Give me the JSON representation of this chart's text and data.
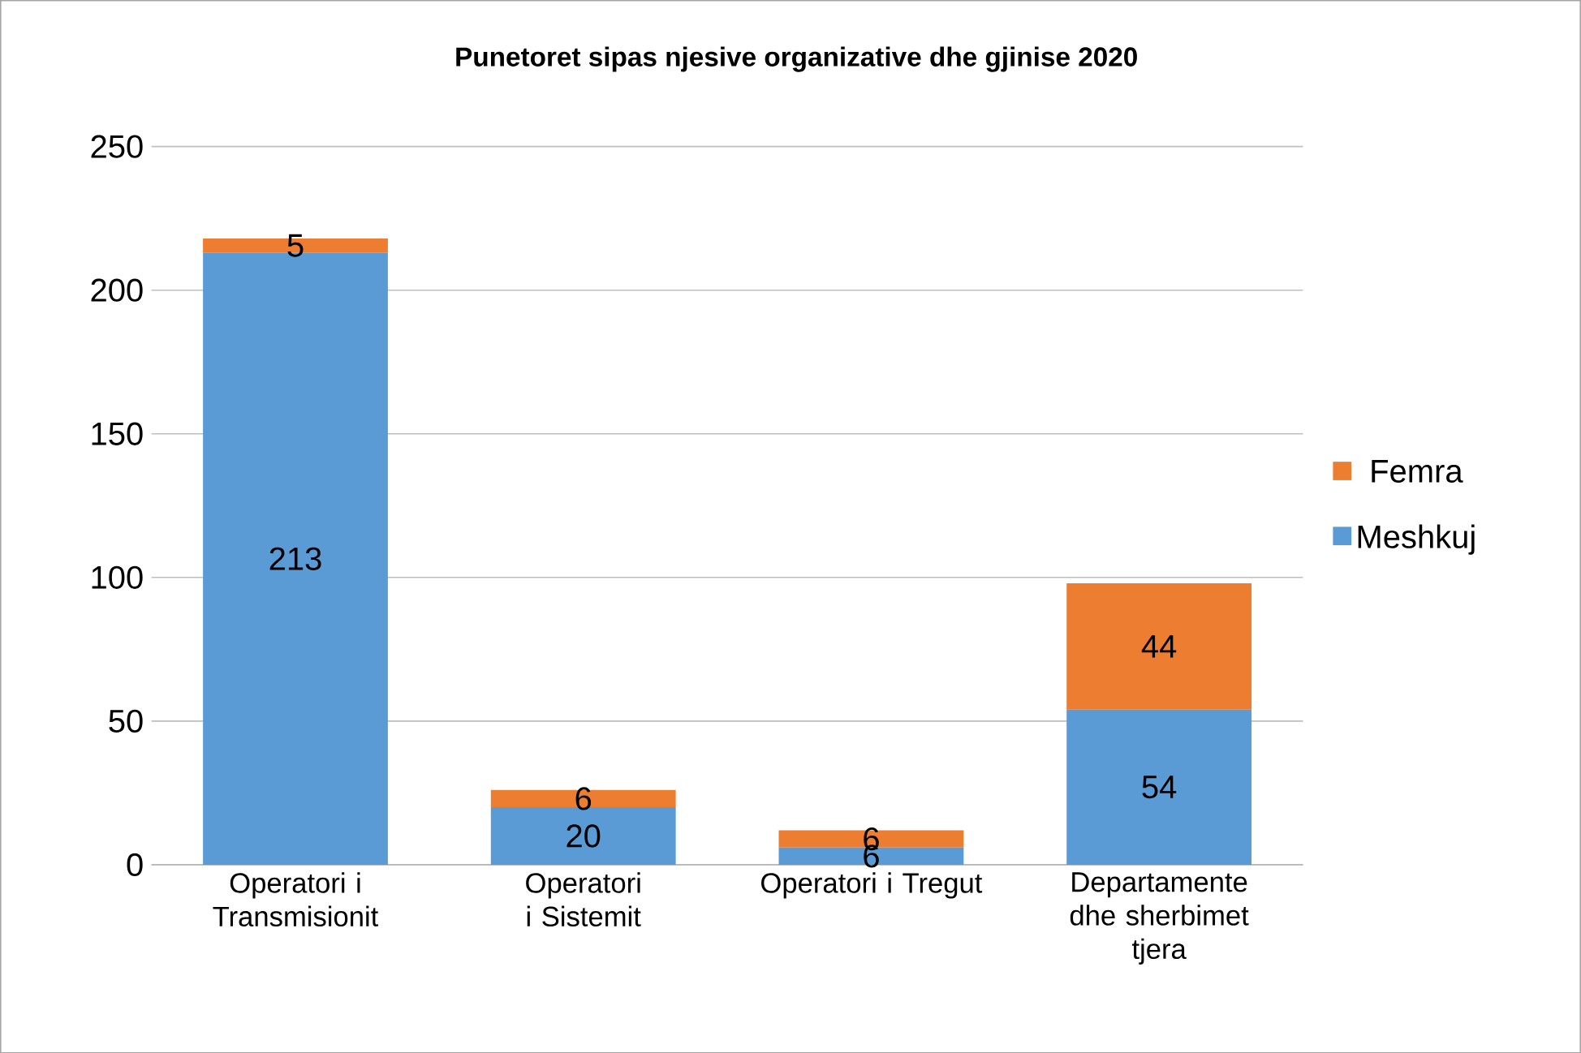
{
  "chart_data": {
    "type": "bar",
    "title": "Punetoret sipas njesive organizative dhe gjinise 2020",
    "categories": [
      "Operatori i Transmisionit",
      "Operatori i Sistemit",
      "Operatori i Tregut",
      "Departamente dhe sherbimet tjera"
    ],
    "series": [
      {
        "name": "Meshkuj",
        "color": "#5b9bd5",
        "values": [
          213,
          20,
          6,
          54
        ]
      },
      {
        "name": "Femra",
        "color": "#ed7d31",
        "values": [
          5,
          6,
          6,
          44
        ]
      }
    ],
    "stacked": true,
    "ylim": [
      0,
      250
    ],
    "yticks": [
      0,
      50,
      100,
      150,
      200,
      250
    ],
    "grid": "y",
    "legend": "right",
    "data_labels": true
  }
}
